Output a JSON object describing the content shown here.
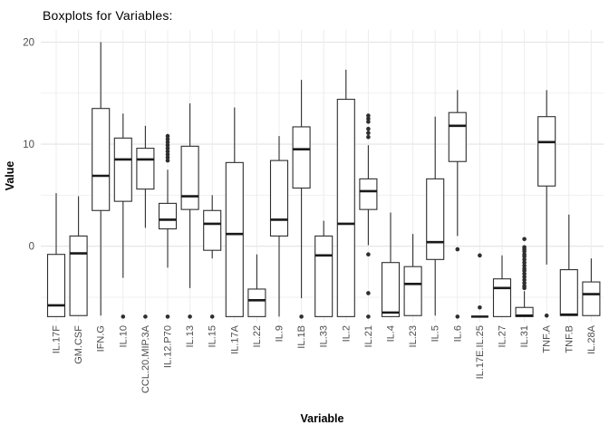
{
  "colors": {
    "background": "#ffffff",
    "grid_major": "#e3e3e3",
    "grid_minor": "#f1f1f1",
    "grid_vertical": "#ececec",
    "box_stroke": "#2e2e2e",
    "box_fill": "#ffffff",
    "median": "#1a1a1a",
    "outlier": "#2e2e2e",
    "axis_text": "#4d4d4d",
    "axis_title_text": "#000000",
    "title_text": "#000000"
  },
  "chart_data": {
    "type": "boxplot",
    "title": "Boxplots for Variables:",
    "xlabel": "Variable",
    "ylabel": "Value",
    "ylim": [
      -7.4,
      21.2
    ],
    "yticks": [
      0,
      10,
      20
    ],
    "yticks_minor": [
      -5,
      5,
      15
    ],
    "grid": "on",
    "legend": "none",
    "categories": [
      "IL.17F",
      "GM.CSF",
      "IFN.G",
      "IL.10",
      "CCL.20.MIP.3A",
      "IL.12.P70",
      "IL.13",
      "IL.15",
      "IL.17A",
      "IL.22",
      "IL.9",
      "IL.1B",
      "IL.33",
      "IL.2",
      "IL.21",
      "IL.4",
      "IL.23",
      "IL.5",
      "IL.6",
      "IL.17E.IL.25",
      "IL.27",
      "IL.31",
      "TNF.A",
      "TNF.B",
      "IL.28A"
    ],
    "stats": [
      {
        "name": "IL.17F",
        "lo": -6.9,
        "q1": -6.9,
        "med": -5.8,
        "q3": -0.8,
        "hi": 5.2,
        "outliers": []
      },
      {
        "name": "GM.CSF",
        "lo": -6.8,
        "q1": -6.8,
        "med": -0.7,
        "q3": 1.0,
        "hi": 4.9,
        "outliers": []
      },
      {
        "name": "IFN.G",
        "lo": -6.8,
        "q1": 3.5,
        "med": 6.9,
        "q3": 13.5,
        "hi": 20.0,
        "outliers": []
      },
      {
        "name": "IL.10",
        "lo": -3.1,
        "q1": 4.4,
        "med": 8.5,
        "q3": 10.6,
        "hi": 13.0,
        "outliers": [
          -6.9
        ]
      },
      {
        "name": "CCL.20.MIP.3A",
        "lo": 1.8,
        "q1": 5.6,
        "med": 8.5,
        "q3": 9.6,
        "hi": 11.8,
        "outliers": [
          -6.9
        ]
      },
      {
        "name": "IL.12.P70",
        "lo": -2.1,
        "q1": 1.7,
        "med": 2.6,
        "q3": 4.2,
        "hi": 7.5,
        "outliers": [
          10.8,
          10.5,
          10.2,
          9.9,
          9.6,
          9.3,
          9.0,
          8.7,
          8.4,
          -6.9
        ]
      },
      {
        "name": "IL.13",
        "lo": -4.1,
        "q1": 3.6,
        "med": 4.9,
        "q3": 9.8,
        "hi": 14.0,
        "outliers": [
          -6.9
        ]
      },
      {
        "name": "IL.15",
        "lo": -1.2,
        "q1": -0.4,
        "med": 2.2,
        "q3": 3.5,
        "hi": 5.0,
        "outliers": [
          -6.9
        ]
      },
      {
        "name": "IL.17A",
        "lo": -6.9,
        "q1": -6.9,
        "med": 1.2,
        "q3": 8.2,
        "hi": 13.6,
        "outliers": []
      },
      {
        "name": "IL.22",
        "lo": -6.9,
        "q1": -6.9,
        "med": -5.3,
        "q3": -4.2,
        "hi": -0.8,
        "outliers": []
      },
      {
        "name": "IL.9",
        "lo": -6.9,
        "q1": 1.0,
        "med": 2.6,
        "q3": 8.4,
        "hi": 10.8,
        "outliers": []
      },
      {
        "name": "IL.1B",
        "lo": -5.1,
        "q1": 5.7,
        "med": 9.5,
        "q3": 11.7,
        "hi": 16.3,
        "outliers": [
          -6.9
        ]
      },
      {
        "name": "IL.33",
        "lo": -6.9,
        "q1": -6.9,
        "med": -0.9,
        "q3": 1.0,
        "hi": 2.5,
        "outliers": []
      },
      {
        "name": "IL.2",
        "lo": -6.9,
        "q1": -6.9,
        "med": 2.2,
        "q3": 14.4,
        "hi": 17.3,
        "outliers": []
      },
      {
        "name": "IL.21",
        "lo": 0.1,
        "q1": 3.6,
        "med": 5.4,
        "q3": 6.6,
        "hi": 9.9,
        "outliers": [
          12.8,
          12.5,
          12.2,
          11.5,
          11.1,
          10.7,
          -0.8,
          -4.6,
          -6.9
        ]
      },
      {
        "name": "IL.4",
        "lo": -6.9,
        "q1": -6.9,
        "med": -6.5,
        "q3": -1.6,
        "hi": 3.3,
        "outliers": []
      },
      {
        "name": "IL.23",
        "lo": -6.8,
        "q1": -6.8,
        "med": -3.7,
        "q3": -2.0,
        "hi": 1.2,
        "outliers": []
      },
      {
        "name": "IL.5",
        "lo": -6.8,
        "q1": -1.3,
        "med": 0.4,
        "q3": 6.6,
        "hi": 12.7,
        "outliers": []
      },
      {
        "name": "IL.6",
        "lo": 1.0,
        "q1": 8.3,
        "med": 11.8,
        "q3": 13.1,
        "hi": 15.3,
        "outliers": [
          -0.3,
          -6.9
        ]
      },
      {
        "name": "IL.17E.IL.25",
        "lo": -6.9,
        "q1": -6.9,
        "med": -6.9,
        "q3": -6.9,
        "hi": -6.9,
        "outliers": [
          -0.9,
          -6.0
        ]
      },
      {
        "name": "IL.27",
        "lo": -6.9,
        "q1": -6.9,
        "med": -4.1,
        "q3": -3.2,
        "hi": -0.9,
        "outliers": []
      },
      {
        "name": "IL.31",
        "lo": -6.9,
        "q1": -6.9,
        "med": -6.8,
        "q3": -6.0,
        "hi": -4.4,
        "outliers": [
          0.7,
          -0.1,
          -0.3,
          -0.5,
          -0.8,
          -1.0,
          -1.3,
          -1.6,
          -1.9,
          -2.2,
          -2.4,
          -2.7,
          -3.0,
          -3.3,
          -3.6,
          -3.9,
          -4.1
        ]
      },
      {
        "name": "TNF.A",
        "lo": -1.8,
        "q1": 5.9,
        "med": 10.2,
        "q3": 12.7,
        "hi": 15.3,
        "outliers": [
          -6.8
        ]
      },
      {
        "name": "TNF.B",
        "lo": -6.8,
        "q1": -6.8,
        "med": -6.7,
        "q3": -2.3,
        "hi": 3.1,
        "outliers": []
      },
      {
        "name": "IL.28A",
        "lo": -6.8,
        "q1": -6.8,
        "med": -4.7,
        "q3": -3.5,
        "hi": -1.2,
        "outliers": []
      }
    ]
  }
}
